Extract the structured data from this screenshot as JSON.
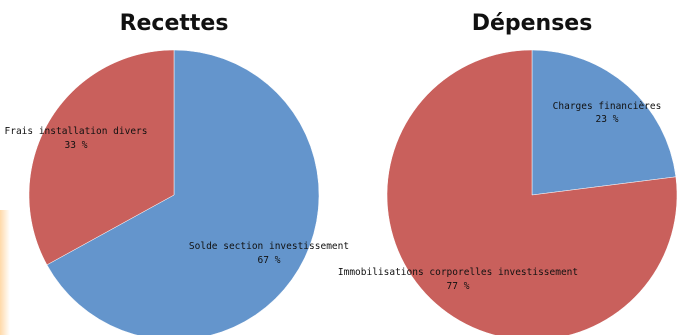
{
  "chart_data": [
    {
      "type": "pie",
      "title": "Recettes",
      "slices": [
        {
          "label": "Solde section investissement",
          "value": 67,
          "value_label": "67 %",
          "color": "#6495cc"
        },
        {
          "label": "Frais installation divers",
          "value": 33,
          "value_label": "33 %",
          "color": "#c9605c"
        }
      ]
    },
    {
      "type": "pie",
      "title": "Dépenses",
      "slices": [
        {
          "label": "Charges financières",
          "value": 23,
          "value_label": "23 %",
          "color": "#6495cc"
        },
        {
          "label": "Immobilisations corporelles investissement",
          "value": 77,
          "value_label": "77 %",
          "color": "#c9605c"
        }
      ]
    }
  ]
}
